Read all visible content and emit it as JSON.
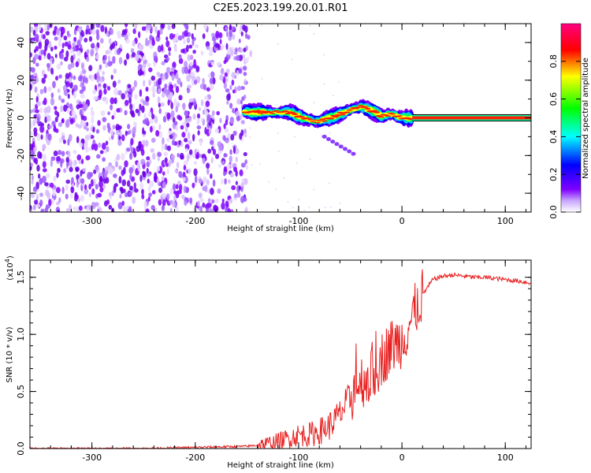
{
  "title": "C2E5.2023.199.20.01.R01",
  "chart_data": [
    {
      "type": "heatmap",
      "xlabel": "Height of straight line (km)",
      "ylabel": "Frequency (Hz)",
      "xlim": [
        -360,
        125
      ],
      "ylim": [
        -50,
        50
      ],
      "x_ticks": [
        -300,
        -200,
        -100,
        0,
        100
      ],
      "y_ticks": [
        -40,
        -20,
        0,
        20,
        40
      ],
      "colorbar": {
        "label": "Normalized spectral amplitude",
        "range": [
          0,
          1
        ],
        "ticks": [
          "0.0",
          "0.2",
          "0.4",
          "0.6",
          "0.8"
        ],
        "colors": [
          "#ffffff",
          "#7f00ff",
          "#0000ff",
          "#00ffff",
          "#00ff00",
          "#ffff00",
          "#ff0000",
          "#ff0080"
        ]
      },
      "noise_region_x": [
        -360,
        -150
      ],
      "ridge": {
        "x": [
          -152,
          -140,
          -125,
          -110,
          -100,
          -90,
          -80,
          -70,
          -60,
          -50,
          -40,
          -30,
          -20,
          -10,
          0,
          10,
          125
        ],
        "y": [
          3,
          3,
          3,
          3,
          1,
          -1,
          -2,
          0,
          2,
          4,
          6,
          4,
          1,
          2,
          0,
          0,
          0
        ]
      }
    },
    {
      "type": "line",
      "xlabel": "Height of straight line (km)",
      "ylabel": "SNR (10 * v/v)",
      "y_multiplier": "(x10",
      "y_multiplier_exp": "4",
      "xlim": [
        -360,
        125
      ],
      "ylim": [
        0,
        1.65
      ],
      "x_ticks": [
        -300,
        -200,
        -100,
        0,
        100
      ],
      "y_ticks": [
        "0.0",
        "0.5",
        "1.0",
        "1.5"
      ],
      "color": "#e82020",
      "x": [
        -360,
        -300,
        -250,
        -200,
        -150,
        -130,
        -120,
        -110,
        -100,
        -90,
        -80,
        -70,
        -60,
        -50,
        -40,
        -30,
        -20,
        -10,
        0,
        10,
        20,
        30,
        40,
        50,
        60,
        70,
        80,
        90,
        100,
        110,
        125
      ],
      "y": [
        0.0,
        0.0,
        0.0,
        0.01,
        0.02,
        0.04,
        0.06,
        0.09,
        0.12,
        0.12,
        0.15,
        0.2,
        0.3,
        0.45,
        0.6,
        0.62,
        0.78,
        0.9,
        0.95,
        1.15,
        1.35,
        1.48,
        1.51,
        1.52,
        1.51,
        1.5,
        1.5,
        1.49,
        1.48,
        1.47,
        1.45
      ]
    }
  ]
}
